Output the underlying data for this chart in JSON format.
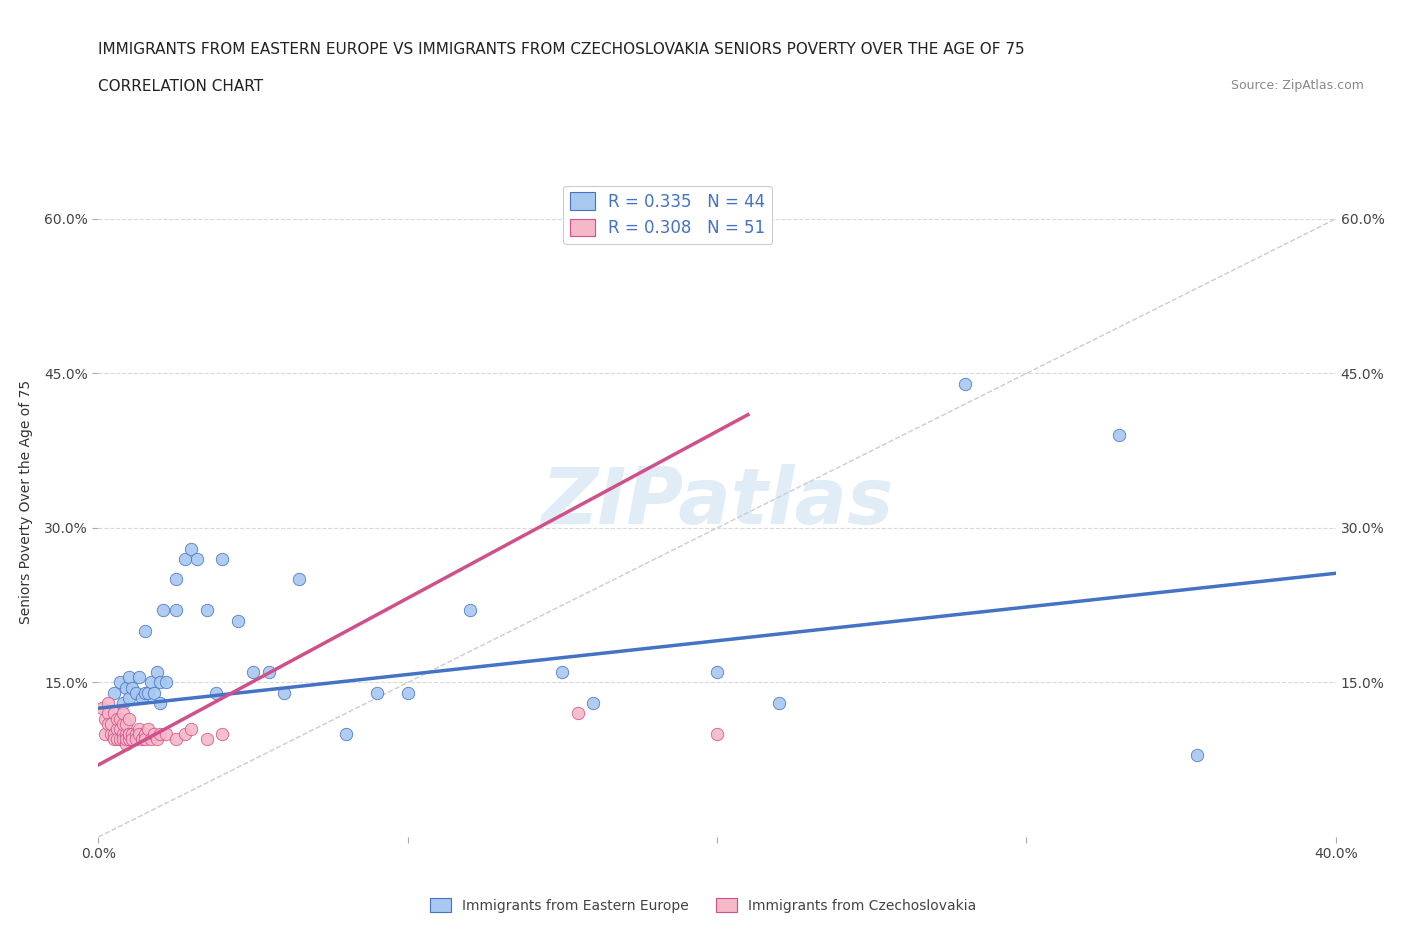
{
  "title_line1": "IMMIGRANTS FROM EASTERN EUROPE VS IMMIGRANTS FROM CZECHOSLOVAKIA SENIORS POVERTY OVER THE AGE OF 75",
  "title_line2": "CORRELATION CHART",
  "source_text": "Source: ZipAtlas.com",
  "ylabel": "Seniors Poverty Over the Age of 75",
  "xlim": [
    0.0,
    0.4
  ],
  "ylim": [
    0.0,
    0.65
  ],
  "xticks": [
    0.0,
    0.1,
    0.2,
    0.3,
    0.4
  ],
  "xticklabels": [
    "0.0%",
    "",
    "",
    "",
    "40.0%"
  ],
  "yticks": [
    0.15,
    0.3,
    0.45,
    0.6
  ],
  "yticklabels": [
    "15.0%",
    "30.0%",
    "45.0%",
    "60.0%"
  ],
  "blue_R": 0.335,
  "blue_N": 44,
  "pink_R": 0.308,
  "pink_N": 51,
  "blue_color": "#a8c8f0",
  "pink_color": "#f5b8c8",
  "blue_line_color": "#4472c4",
  "pink_line_color": "#d0508a",
  "watermark_color": "#c8ddf0",
  "watermark": "ZIPatlas",
  "blue_scatter_x": [
    0.005,
    0.007,
    0.008,
    0.009,
    0.01,
    0.01,
    0.011,
    0.012,
    0.013,
    0.014,
    0.015,
    0.015,
    0.016,
    0.017,
    0.018,
    0.019,
    0.02,
    0.02,
    0.021,
    0.022,
    0.025,
    0.025,
    0.028,
    0.03,
    0.032,
    0.035,
    0.038,
    0.04,
    0.045,
    0.05,
    0.055,
    0.06,
    0.065,
    0.08,
    0.09,
    0.1,
    0.12,
    0.15,
    0.16,
    0.2,
    0.22,
    0.28,
    0.33,
    0.355
  ],
  "blue_scatter_y": [
    0.14,
    0.15,
    0.13,
    0.145,
    0.135,
    0.155,
    0.145,
    0.14,
    0.155,
    0.135,
    0.14,
    0.2,
    0.14,
    0.15,
    0.14,
    0.16,
    0.13,
    0.15,
    0.22,
    0.15,
    0.22,
    0.25,
    0.27,
    0.28,
    0.27,
    0.22,
    0.14,
    0.27,
    0.21,
    0.16,
    0.16,
    0.14,
    0.25,
    0.1,
    0.14,
    0.14,
    0.22,
    0.16,
    0.13,
    0.16,
    0.13,
    0.44,
    0.39,
    0.08
  ],
  "pink_scatter_x": [
    0.001,
    0.002,
    0.002,
    0.003,
    0.003,
    0.003,
    0.004,
    0.004,
    0.005,
    0.005,
    0.005,
    0.006,
    0.006,
    0.006,
    0.007,
    0.007,
    0.007,
    0.008,
    0.008,
    0.008,
    0.008,
    0.009,
    0.009,
    0.009,
    0.009,
    0.01,
    0.01,
    0.01,
    0.01,
    0.011,
    0.011,
    0.012,
    0.012,
    0.013,
    0.013,
    0.014,
    0.015,
    0.015,
    0.016,
    0.017,
    0.018,
    0.019,
    0.02,
    0.022,
    0.025,
    0.028,
    0.03,
    0.035,
    0.04,
    0.155,
    0.2
  ],
  "pink_scatter_y": [
    0.125,
    0.115,
    0.1,
    0.13,
    0.12,
    0.11,
    0.1,
    0.11,
    0.1,
    0.12,
    0.095,
    0.105,
    0.095,
    0.115,
    0.105,
    0.095,
    0.115,
    0.1,
    0.095,
    0.11,
    0.12,
    0.09,
    0.1,
    0.11,
    0.095,
    0.1,
    0.095,
    0.115,
    0.1,
    0.1,
    0.095,
    0.1,
    0.095,
    0.105,
    0.1,
    0.095,
    0.1,
    0.095,
    0.105,
    0.095,
    0.1,
    0.095,
    0.1,
    0.1,
    0.095,
    0.1,
    0.105,
    0.095,
    0.1,
    0.12,
    0.1
  ],
  "bg_color": "#ffffff",
  "grid_color": "#d8d8d8"
}
